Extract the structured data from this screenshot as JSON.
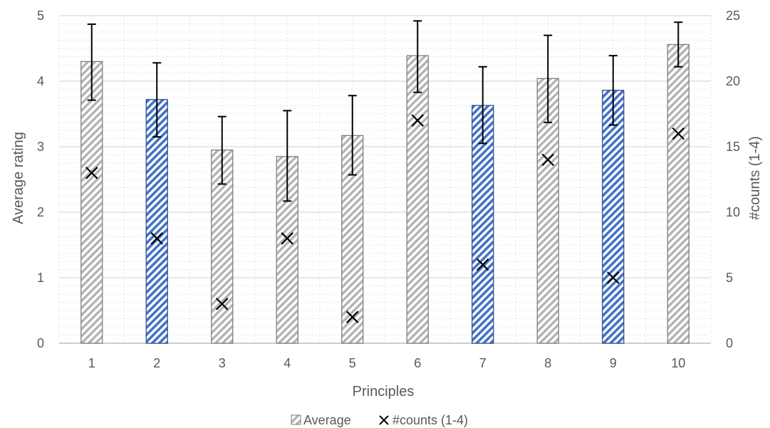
{
  "chart_data": {
    "type": "bar",
    "xlabel": "Principles",
    "ylabel": "Average rating",
    "y2label": "#counts (1-4)",
    "categories": [
      "1",
      "2",
      "3",
      "4",
      "5",
      "6",
      "7",
      "8",
      "9",
      "10"
    ],
    "ylim": [
      0,
      5
    ],
    "y2lim": [
      0,
      25
    ],
    "yticks": [
      "0",
      "1",
      "2",
      "3",
      "4",
      "5"
    ],
    "y2ticks": [
      "0",
      "5",
      "10",
      "15",
      "20",
      "25"
    ],
    "series": [
      {
        "name": "Average",
        "kind": "bar",
        "axis": "left",
        "values": [
          4.3,
          3.72,
          2.95,
          2.85,
          3.17,
          4.39,
          3.63,
          4.04,
          3.86,
          4.56
        ],
        "error_low": [
          3.71,
          3.15,
          2.43,
          2.17,
          2.57,
          3.83,
          3.05,
          3.37,
          3.33,
          4.22
        ],
        "error_high": [
          4.87,
          4.28,
          3.46,
          3.55,
          3.78,
          4.92,
          4.22,
          4.7,
          4.39,
          4.9
        ],
        "highlighted": [
          false,
          true,
          false,
          false,
          false,
          false,
          true,
          false,
          true,
          false
        ]
      },
      {
        "name": "#counts (1-4)",
        "kind": "marker",
        "marker": "x",
        "axis": "right",
        "values": [
          13,
          8,
          3,
          8,
          2,
          17,
          6,
          14,
          5,
          16
        ]
      }
    ],
    "legend_position": "bottom",
    "grid": true,
    "colors": {
      "bar_gray": "#a6a6a6",
      "bar_blue": "#4472c4",
      "axis_text": "#595959",
      "grid": "#d9d9d9"
    }
  }
}
